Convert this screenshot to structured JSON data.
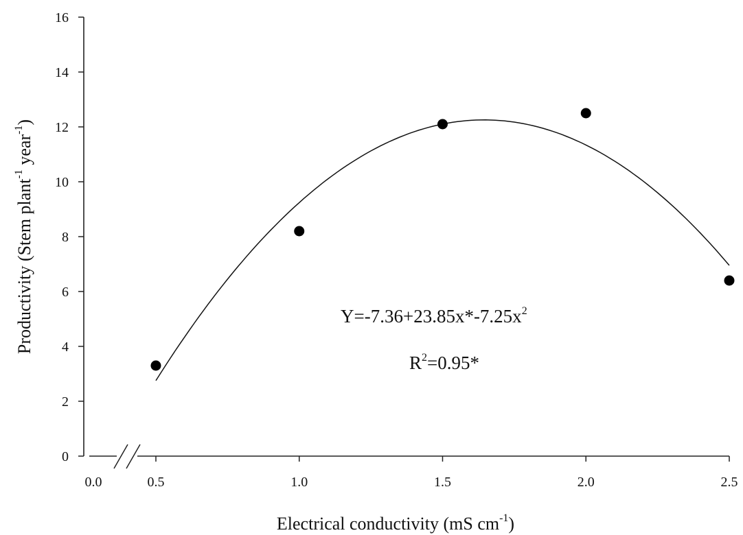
{
  "chart_data": {
    "type": "scatter",
    "title": "",
    "xlabel": {
      "main": "Electrical conductivity",
      "unit_pre": "(mS cm",
      "unit_sup": "-1",
      "unit_post": ")"
    },
    "ylabel": {
      "main": "Productivity (Stem plant",
      "sup1": "-1",
      "mid": " year",
      "sup2": "-1",
      "post": ")"
    },
    "xlim": [
      0.0,
      2.5
    ],
    "ylim": [
      0,
      16
    ],
    "x_axis_break": true,
    "x_ticks": [
      0.0,
      0.5,
      1.0,
      1.5,
      2.0,
      2.5
    ],
    "x_tick_labels": [
      "0.0",
      "0.5",
      "1.0",
      "1.5",
      "2.0",
      "2.5"
    ],
    "y_ticks": [
      0,
      2,
      4,
      6,
      8,
      10,
      12,
      14,
      16
    ],
    "y_tick_labels": [
      "0",
      "2",
      "4",
      "6",
      "8",
      "10",
      "12",
      "14",
      "16"
    ],
    "grid": false,
    "points": [
      {
        "x": 0.5,
        "y": 3.3
      },
      {
        "x": 1.0,
        "y": 8.2
      },
      {
        "x": 1.5,
        "y": 12.1
      },
      {
        "x": 2.0,
        "y": 12.5
      },
      {
        "x": 2.5,
        "y": 6.4
      }
    ],
    "fit": {
      "type": "quadratic",
      "a": -7.36,
      "b": 23.85,
      "c": -7.25,
      "x_range": [
        0.5,
        2.5
      ]
    },
    "annotations": {
      "equation": {
        "base": "Y=-7.36+23.85x*-7.25x",
        "sup": "2"
      },
      "r2": {
        "pre": "R",
        "sup": "2",
        "post": "=0.95*"
      }
    }
  }
}
